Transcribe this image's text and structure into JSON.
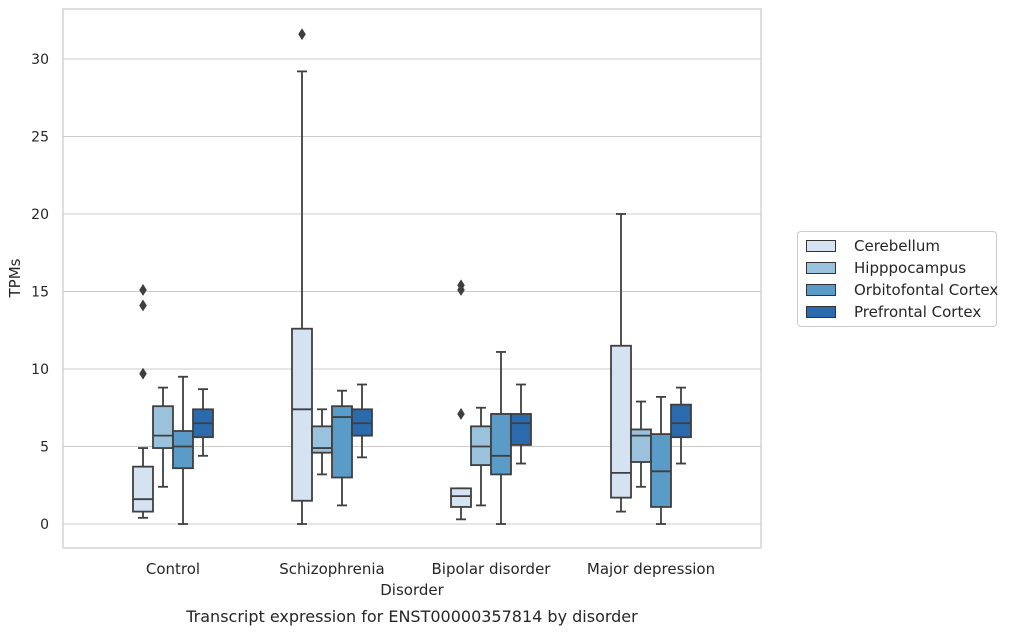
{
  "chart_data": {
    "type": "box",
    "title": "Transcript expression for ENST00000357814 by disorder",
    "xlabel": "Disorder",
    "ylabel": "TPMs",
    "ylim": [
      -1.5,
      33
    ],
    "yticks": [
      0,
      5,
      10,
      15,
      20,
      25,
      30
    ],
    "grid": true,
    "legend_position": "right",
    "categories": [
      "Control",
      "Schizophrenia",
      "Bipolar disorder",
      "Major depression"
    ],
    "series": [
      {
        "name": "Cerebellum",
        "color": "#d4e2f1",
        "boxes": [
          {
            "whisker_low": 0.4,
            "q1": 0.8,
            "median": 1.6,
            "q3": 3.7,
            "whisker_high": 4.9,
            "outliers": [
              9.7,
              14.1,
              15.1
            ]
          },
          {
            "whisker_low": 0.0,
            "q1": 1.5,
            "median": 7.4,
            "q3": 12.6,
            "whisker_high": 29.2,
            "outliers": [
              31.6
            ]
          },
          {
            "whisker_low": 0.3,
            "q1": 1.1,
            "median": 1.8,
            "q3": 2.3,
            "whisker_high": 2.3,
            "outliers": [
              7.1,
              15.1,
              15.4
            ]
          },
          {
            "whisker_low": 0.8,
            "q1": 1.7,
            "median": 3.3,
            "q3": 11.5,
            "whisker_high": 20.0,
            "outliers": []
          }
        ]
      },
      {
        "name": "Hipppocampus",
        "color": "#9ac2dd",
        "boxes": [
          {
            "whisker_low": 2.4,
            "q1": 4.9,
            "median": 5.7,
            "q3": 7.6,
            "whisker_high": 8.8,
            "outliers": []
          },
          {
            "whisker_low": 3.2,
            "q1": 4.6,
            "median": 4.9,
            "q3": 6.3,
            "whisker_high": 7.4,
            "outliers": []
          },
          {
            "whisker_low": 1.2,
            "q1": 3.8,
            "median": 5.0,
            "q3": 6.3,
            "whisker_high": 7.5,
            "outliers": []
          },
          {
            "whisker_low": 2.4,
            "q1": 4.0,
            "median": 5.7,
            "q3": 6.1,
            "whisker_high": 7.9,
            "outliers": []
          }
        ]
      },
      {
        "name": "Orbitofontal Cortex",
        "color": "#5b9bc8",
        "boxes": [
          {
            "whisker_low": 0.0,
            "q1": 3.6,
            "median": 5.0,
            "q3": 6.0,
            "whisker_high": 9.5,
            "outliers": []
          },
          {
            "whisker_low": 1.2,
            "q1": 3.0,
            "median": 6.9,
            "q3": 7.6,
            "whisker_high": 8.6,
            "outliers": []
          },
          {
            "whisker_low": 0.0,
            "q1": 3.2,
            "median": 4.4,
            "q3": 7.1,
            "whisker_high": 11.1,
            "outliers": []
          },
          {
            "whisker_low": 0.0,
            "q1": 1.1,
            "median": 3.4,
            "q3": 5.8,
            "whisker_high": 8.2,
            "outliers": []
          }
        ]
      },
      {
        "name": "Prefrontal Cortex",
        "color": "#2a6aad",
        "boxes": [
          {
            "whisker_low": 4.4,
            "q1": 5.6,
            "median": 6.5,
            "q3": 7.4,
            "whisker_high": 8.7,
            "outliers": []
          },
          {
            "whisker_low": 4.3,
            "q1": 5.7,
            "median": 6.5,
            "q3": 7.4,
            "whisker_high": 9.0,
            "outliers": []
          },
          {
            "whisker_low": 3.9,
            "q1": 5.1,
            "median": 6.5,
            "q3": 7.1,
            "whisker_high": 9.0,
            "outliers": []
          },
          {
            "whisker_low": 3.9,
            "q1": 5.6,
            "median": 6.5,
            "q3": 7.7,
            "whisker_high": 8.8,
            "outliers": []
          }
        ]
      }
    ]
  }
}
